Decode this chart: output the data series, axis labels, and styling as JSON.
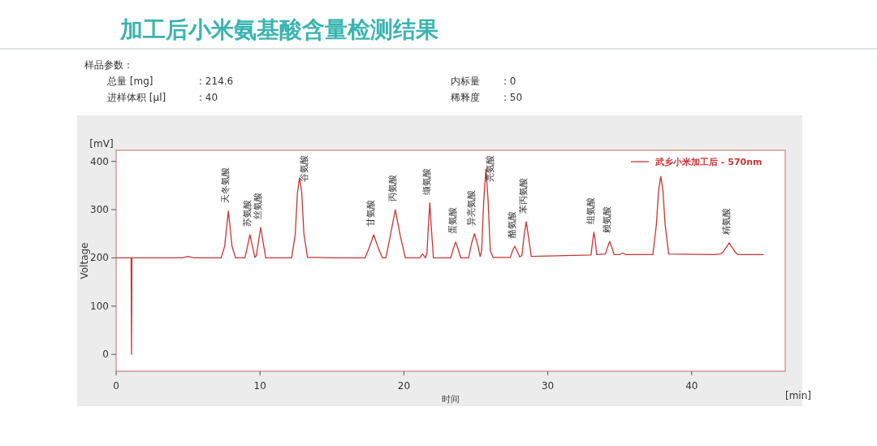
{
  "chart_data": {
    "type": "line",
    "title": "加工后小米氨基酸含量检测结果",
    "xlabel": "时间",
    "ylabel": "Voltage",
    "annotations": [
      "样品参数：",
      "总量 [mg]",
      ": 214.6",
      "进样体积 [µl]",
      ": 40",
      "内标量",
      ": 0",
      "稀释度",
      ": 50",
      "[mV]",
      "[min]",
      {
        "text": "天冬氨酸",
        "x": 7.8,
        "y": 297
      },
      {
        "text": "苏氨酸",
        "x": 9.3,
        "y": 248
      },
      {
        "text": "丝氨酸",
        "x": 10.05,
        "y": 263
      },
      {
        "text": "谷氨酸",
        "x": 12.75,
        "y": 366
      },
      {
        "text": "甘氨酸",
        "x": 17.9,
        "y": 248
      },
      {
        "text": "丙氨酸",
        "x": 19.4,
        "y": 300
      },
      {
        "text": "缬氨酸",
        "x": 21.8,
        "y": 314
      },
      {
        "text": "蛋氨酸",
        "x": 23.6,
        "y": 233
      },
      {
        "text": "异亮氨酸",
        "x": 24.9,
        "y": 250
      },
      {
        "text": "亮氨酸",
        "x": 25.7,
        "y": 384
      },
      {
        "text": "酪氨酸",
        "x": 27.7,
        "y": 224
      },
      {
        "text": "苯丙氨酸",
        "x": 28.5,
        "y": 275
      },
      {
        "text": "组氨酸",
        "x": 33.2,
        "y": 253
      },
      {
        "text": "赖氨酸",
        "x": 34.3,
        "y": 234
      },
      {
        "text": "精氨酸",
        "x": 42.6,
        "y": 231
      }
    ],
    "xlim": [
      0,
      46.5
    ],
    "ylim": [
      -35,
      423
    ],
    "xticks": [
      0,
      10,
      20,
      30,
      40
    ],
    "yticks": [
      0,
      100,
      200,
      300,
      400
    ],
    "grid": false,
    "legend": "top right",
    "series": [
      {
        "name": "武乡小米加工后 - 570nm",
        "color": "#cc3333",
        "x": [
          0,
          1.04,
          1.07,
          1.1,
          4.6,
          5.0,
          5.4,
          7.3,
          7.55,
          7.65,
          7.8,
          7.95,
          8.05,
          8.3,
          8.95,
          9.1,
          9.3,
          9.5,
          9.65,
          9.75,
          9.9,
          10.05,
          10.2,
          10.4,
          12.2,
          12.45,
          12.6,
          12.75,
          12.9,
          13.05,
          13.3,
          14,
          15,
          17.3,
          17.6,
          17.9,
          18.2,
          18.5,
          18.75,
          19.05,
          19.4,
          19.75,
          20.1,
          21.1,
          21.3,
          21.5,
          21.6,
          21.7,
          21.8,
          21.9,
          22.05,
          23.25,
          23.45,
          23.6,
          23.75,
          23.95,
          24.5,
          24.7,
          24.9,
          25.1,
          25.3,
          25.4,
          25.55,
          25.7,
          25.85,
          26.0,
          26.2,
          27.4,
          27.55,
          27.7,
          27.85,
          28.05,
          28.2,
          28.35,
          28.5,
          28.65,
          28.85,
          30,
          33,
          33.12,
          33.2,
          33.3,
          33.4,
          34.0,
          34.15,
          34.3,
          34.45,
          34.6,
          35.0,
          35.2,
          35.4,
          37.3,
          37.55,
          37.7,
          37.85,
          38.0,
          38.15,
          38.4,
          41.5,
          42.0,
          42.2,
          42.6,
          43.0,
          43.2,
          45.0
        ],
        "values": [
          200,
          200,
          0,
          200,
          200,
          203,
          200,
          200,
          225,
          255,
          297,
          255,
          225,
          200,
          200,
          220,
          248,
          220,
          201,
          205,
          235,
          263,
          235,
          200,
          200,
          250,
          335,
          366,
          335,
          250,
          201,
          201,
          200,
          200,
          222,
          248,
          222,
          200,
          200,
          245,
          300,
          245,
          200,
          200,
          208,
          200,
          210,
          265,
          314,
          265,
          200,
          200,
          220,
          233,
          220,
          200,
          200,
          230,
          250,
          230,
          203,
          215,
          320,
          384,
          320,
          215,
          201,
          201,
          215,
          224,
          215,
          202,
          205,
          245,
          275,
          245,
          203,
          204,
          206,
          235,
          253,
          235,
          207,
          208,
          222,
          234,
          222,
          207,
          207,
          210,
          207,
          207,
          270,
          340,
          369,
          340,
          270,
          208,
          207,
          208,
          213,
          231,
          213,
          207,
          207
        ]
      }
    ]
  }
}
